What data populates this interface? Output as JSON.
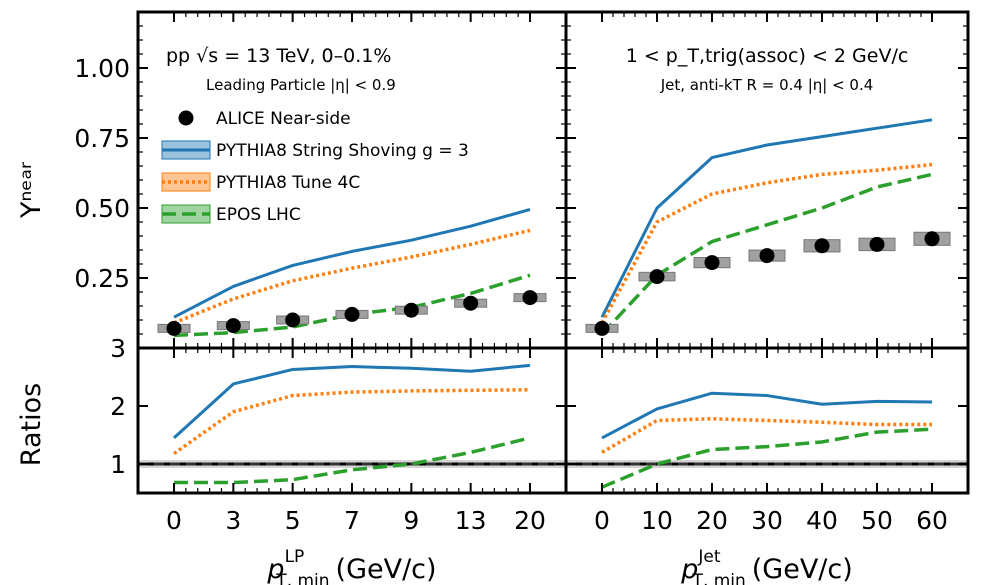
{
  "chart_data": {
    "type": "line",
    "colors": {
      "string_shoving": "#1f77b4",
      "tune4c": "#ff7f0e",
      "epos": "#2ca02c",
      "alice": "#000000",
      "syst": "#a0a0a0"
    },
    "legend": {
      "placement": "upper-left of top-left panel",
      "entries": [
        "ALICE Near-side",
        "PYTHIA8 String Shoving g = 3",
        "PYTHIA8 Tune 4C",
        "EPOS LHC"
      ]
    },
    "ylabel_top": "Yⁿᵉᵃʳ",
    "ylabel_bottom": "Ratios",
    "top_ylim": [
      0.0,
      1.2
    ],
    "top_yticks": [
      "0.25",
      "0.50",
      "0.75",
      "1.00"
    ],
    "ratio_ylim": [
      0.5,
      3.0
    ],
    "ratio_yticks": [
      "1",
      "2",
      "3"
    ],
    "left": {
      "annotation_line1": "pp √s = 13 TeV, 0–0.1%",
      "annotation_line2": "Leading Particle |η| < 0.9",
      "xlabel": "p_T,min^LP (GeV/c)",
      "xlabel_main": "p",
      "xlabel_sup": "LP",
      "xlabel_sub": "T, min",
      "xlabel_unit": "(GeV/c)",
      "categories": [
        "0",
        "3",
        "5",
        "7",
        "9",
        "13",
        "20"
      ],
      "alice": [
        0.07,
        0.08,
        0.1,
        0.12,
        0.135,
        0.16,
        0.18
      ],
      "string_shoving": [
        0.11,
        0.22,
        0.295,
        0.345,
        0.385,
        0.435,
        0.495
      ],
      "tune4c": [
        0.09,
        0.175,
        0.24,
        0.285,
        0.325,
        0.37,
        0.42
      ],
      "epos": [
        0.045,
        0.055,
        0.075,
        0.12,
        0.145,
        0.195,
        0.26
      ],
      "ratio_string_shoving": [
        1.45,
        2.38,
        2.63,
        2.68,
        2.65,
        2.6,
        2.7
      ],
      "ratio_tune4c": [
        1.18,
        1.9,
        2.18,
        2.24,
        2.26,
        2.27,
        2.28
      ],
      "ratio_epos": [
        0.68,
        0.68,
        0.73,
        0.9,
        1.0,
        1.2,
        1.45
      ]
    },
    "right": {
      "annotation_line1": "1 < p_T,trig(assoc) < 2 GeV/c",
      "annotation_line2": "Jet, anti-kT R = 0.4 |η| < 0.4",
      "xlabel": "p_T,min^Jet (GeV/c)",
      "xlabel_main": "p",
      "xlabel_sup": "Jet",
      "xlabel_sub": "T, min",
      "xlabel_unit": "(GeV/c)",
      "x": [
        0,
        10,
        20,
        30,
        40,
        50,
        60
      ],
      "alice": [
        0.07,
        0.255,
        0.305,
        0.33,
        0.365,
        0.37,
        0.39
      ],
      "string_shoving": [
        0.11,
        0.5,
        0.68,
        0.725,
        0.755,
        0.785,
        0.815
      ],
      "tune4c": [
        0.09,
        0.45,
        0.55,
        0.59,
        0.62,
        0.635,
        0.655
      ],
      "epos": [
        0.05,
        0.26,
        0.38,
        0.44,
        0.5,
        0.575,
        0.62
      ],
      "ratio_string_shoving": [
        1.45,
        1.95,
        2.22,
        2.18,
        2.03,
        2.08,
        2.07
      ],
      "ratio_tune4c": [
        1.2,
        1.75,
        1.78,
        1.75,
        1.72,
        1.68,
        1.68
      ],
      "ratio_epos": [
        0.6,
        1.0,
        1.25,
        1.3,
        1.38,
        1.55,
        1.6
      ]
    }
  }
}
